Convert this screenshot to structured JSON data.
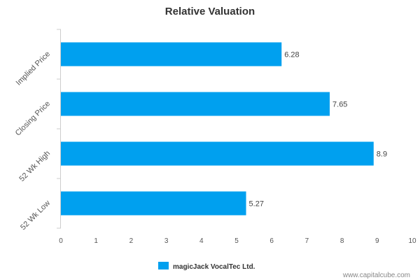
{
  "chart_data": {
    "type": "bar",
    "orientation": "horizontal",
    "title": "Relative Valuation",
    "xlabel": "",
    "ylabel": "",
    "categories": [
      "Implied Price",
      "Closing Price",
      "52 Wk High",
      "52 Wk Low"
    ],
    "series": [
      {
        "name": "magicJack VocalTec Ltd.",
        "color": "#00a0ef",
        "values": [
          6.28,
          7.65,
          8.9,
          5.27
        ],
        "labels": [
          "6.28",
          "7.65",
          "8.9",
          "5.27"
        ]
      }
    ],
    "xlim": [
      0,
      10
    ],
    "xticks": [
      "0",
      "1",
      "2",
      "3",
      "4",
      "5",
      "6",
      "7",
      "8",
      "9",
      "10"
    ],
    "grid": false,
    "legend": "bottom-center"
  },
  "footer": {
    "source": "www.capitalcube.com"
  }
}
